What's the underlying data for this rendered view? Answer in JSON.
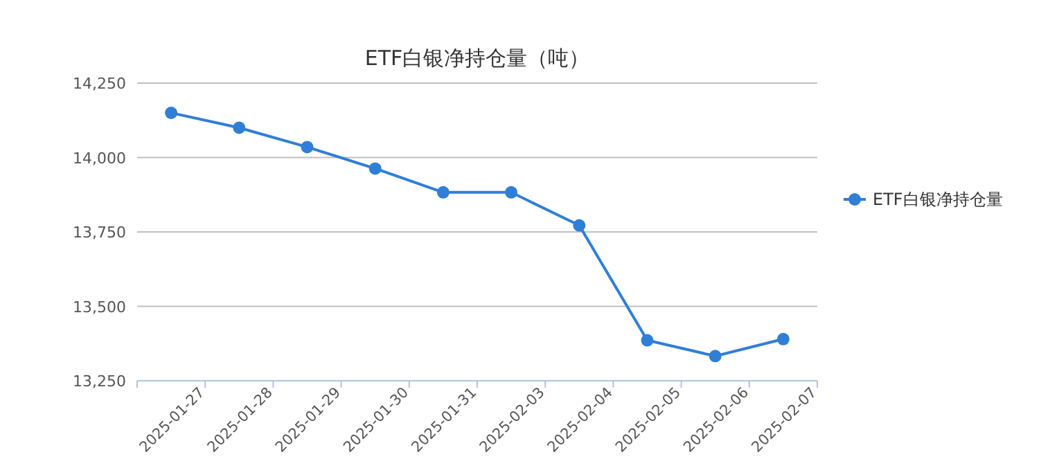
{
  "chart_data": {
    "type": "line",
    "title": "ETF白银净持仓量（吨）",
    "categories": [
      "2025-01-27",
      "2025-01-28",
      "2025-01-29",
      "2025-01-30",
      "2025-01-31",
      "2025-02-03",
      "2025-02-04",
      "2025-02-05",
      "2025-02-06",
      "2025-02-07"
    ],
    "series": [
      {
        "name": "ETF白银净持仓量",
        "color": "#2f7ed8",
        "values": [
          14150,
          14100,
          14035,
          13963,
          13883,
          13883,
          13772,
          13386,
          13333,
          13390
        ]
      }
    ],
    "ylim": [
      13250,
      14250
    ],
    "yticks": [
      {
        "value": 13250,
        "label": "13,250"
      },
      {
        "value": 13500,
        "label": "13,500"
      },
      {
        "value": 13750,
        "label": "13,750"
      },
      {
        "value": 14000,
        "label": "14,000"
      },
      {
        "value": 14250,
        "label": "14,250"
      }
    ],
    "grid": "y",
    "legend": "right",
    "marker": "circle",
    "line_style": "solid"
  }
}
